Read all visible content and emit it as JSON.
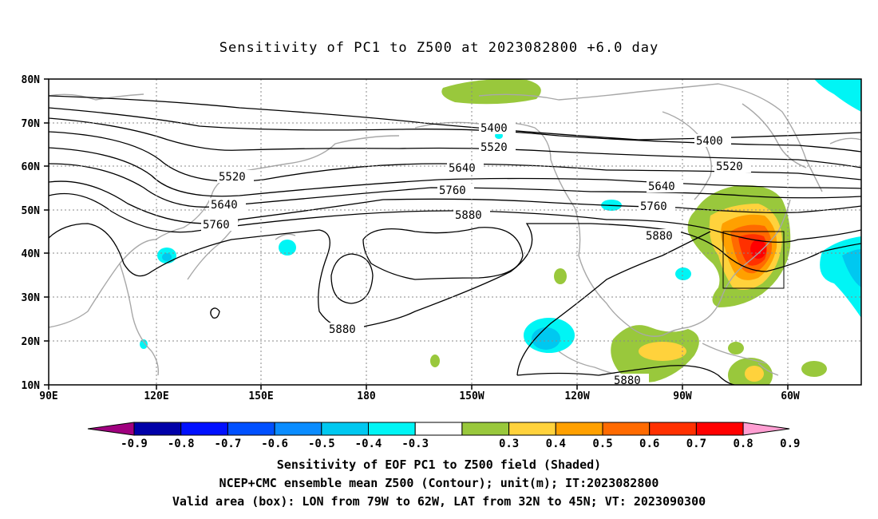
{
  "title": "Sensitivity of PC1 to Z500 at 2023082800 +6.0 day",
  "lat_labels": [
    "80N",
    "70N",
    "60N",
    "50N",
    "40N",
    "30N",
    "20N",
    "10N"
  ],
  "lon_labels": [
    "90E",
    "120E",
    "150E",
    "180",
    "150W",
    "120W",
    "90W",
    "60W"
  ],
  "contour_labels": [
    {
      "id": "c5400a",
      "text": "5400"
    },
    {
      "id": "c5400b",
      "text": "5400"
    },
    {
      "id": "c5520a",
      "text": "5520"
    },
    {
      "id": "c5520b",
      "text": "5520"
    },
    {
      "id": "c5520c",
      "text": "5520"
    },
    {
      "id": "c5640a",
      "text": "5640"
    },
    {
      "id": "c5640b",
      "text": "5640"
    },
    {
      "id": "c5640c",
      "text": "5640"
    },
    {
      "id": "c5760a",
      "text": "5760"
    },
    {
      "id": "c5760b",
      "text": "5760"
    },
    {
      "id": "c5760c",
      "text": "5760"
    },
    {
      "id": "c5880a",
      "text": "5880"
    },
    {
      "id": "c5880b",
      "text": "5880"
    },
    {
      "id": "c5880c",
      "text": "5880"
    },
    {
      "id": "c5880d",
      "text": "5880"
    }
  ],
  "colorbar": {
    "colors": [
      "#a0007f",
      "#0000a8",
      "#0010ff",
      "#0050ff",
      "#0a8cff",
      "#00c8f0",
      "#00f5f5",
      "#ffffff",
      "#99c83c",
      "#ffd23c",
      "#ffa000",
      "#ff6a00",
      "#ff3000",
      "#ff0000",
      "#ff9ed2"
    ],
    "labels": [
      "-0.9",
      "-0.8",
      "-0.7",
      "-0.6",
      "-0.5",
      "-0.4",
      "-0.3",
      "0.3",
      "0.4",
      "0.5",
      "0.6",
      "0.7",
      "0.8",
      "0.9"
    ]
  },
  "footer": {
    "line1": "Sensitivity of EOF PC1 to Z500 field (Shaded)",
    "line2": "NCEP+CMC ensemble mean Z500 (Contour); unit(m); IT:2023082800",
    "line3": "Valid area (box): LON from 79W to 62W, LAT from 32N to 45N; VT: 2023090300"
  }
}
